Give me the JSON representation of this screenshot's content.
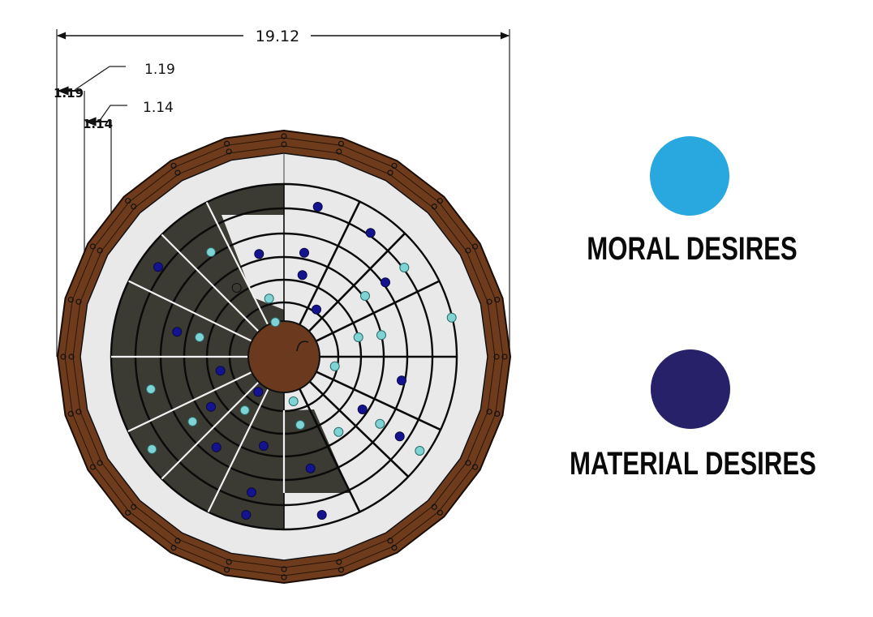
{
  "dimensions": {
    "overall_width": "19.12",
    "ring_width_callout": "1.19",
    "ring_width_small": "1.19",
    "inner_ring_callout": "1.14",
    "inner_ring_small": "1.14"
  },
  "legend": [
    {
      "label": "MORAL DESIRES",
      "color": "#29a8e0"
    },
    {
      "label": "MATERIAL DESIRES",
      "color": "#27216a"
    }
  ],
  "colors": {
    "wood": "#6e3b1c",
    "light_surface": "#e9e9e9",
    "dark_surface": "#3b3a33",
    "moral_dot": "#7fd3d3",
    "material_dot": "#141491"
  }
}
